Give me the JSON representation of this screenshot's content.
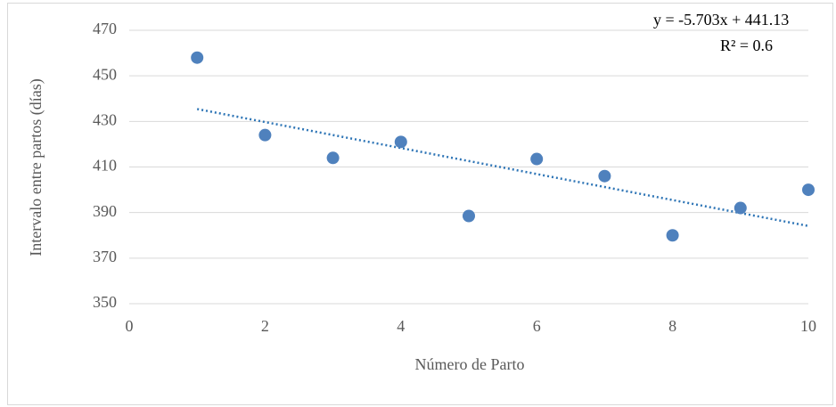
{
  "chart_data": {
    "type": "scatter",
    "x_label": "Número de Parto",
    "y_label": "Intervalo entre partos (días)",
    "series": [
      {
        "name": "Intervalo",
        "color": "#4f81bd",
        "x": [
          1,
          2,
          3,
          4,
          5,
          6,
          7,
          8,
          9,
          10
        ],
        "values": [
          458,
          424,
          414,
          421,
          388.5,
          413.5,
          406,
          380,
          392,
          400
        ]
      }
    ],
    "trendline": {
      "slope": -5.703,
      "intercept": 441.13,
      "color": "#2e75b6",
      "equation": "y = -5.703x + 441.13",
      "r2": 0.6,
      "r2_label": "R² = 0.6"
    },
    "xlim": [
      0,
      10
    ],
    "xticks": [
      0,
      2,
      4,
      6,
      8,
      10
    ],
    "ylim": [
      350,
      470
    ],
    "yticks": [
      350,
      370,
      390,
      410,
      430,
      450,
      470
    ],
    "grid": true
  }
}
